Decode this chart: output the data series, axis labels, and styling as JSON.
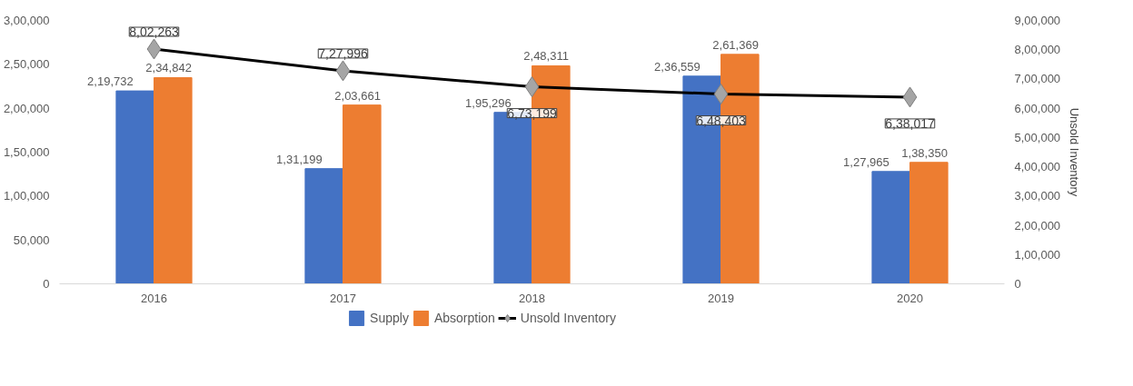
{
  "chart_data": {
    "type": "bar",
    "categories": [
      "2016",
      "2017",
      "2018",
      "2019",
      "2020"
    ],
    "y2label": "Unsold Inventory",
    "series": [
      {
        "name": "Supply",
        "color": "#4472c4",
        "values": [
          219732,
          131199,
          195296,
          236559,
          127965
        ],
        "value_labels": [
          "2,19,732",
          "1,31,199",
          "1,95,296",
          "2,36,559",
          "1,27,965"
        ]
      },
      {
        "name": "Absorption",
        "color": "#ed7d31",
        "values": [
          234842,
          203661,
          248311,
          261369,
          138350
        ],
        "value_labels": [
          "2,34,842",
          "2,03,661",
          "2,48,311",
          "2,61,369",
          "1,38,350"
        ]
      },
      {
        "name": "Unsold Inventory",
        "type": "line",
        "axis": "y2",
        "color": "#000000",
        "marker": "diamond",
        "values": [
          802263,
          727996,
          673199,
          648403,
          638017
        ],
        "value_labels": [
          "8,02,263",
          "7,27,996",
          "6,73,199",
          "6,48,403",
          "6,38,017"
        ]
      }
    ],
    "ylim": [
      0,
      300000
    ],
    "yticks": [
      {
        "value": 0,
        "label": "0"
      },
      {
        "value": 50000,
        "label": "50,000"
      },
      {
        "value": 100000,
        "label": "1,00,000"
      },
      {
        "value": 150000,
        "label": "1,50,000"
      },
      {
        "value": 200000,
        "label": "2,00,000"
      },
      {
        "value": 250000,
        "label": "2,50,000"
      },
      {
        "value": 300000,
        "label": "3,00,000"
      }
    ],
    "y2lim": [
      0,
      900000
    ],
    "y2ticks": [
      {
        "value": 0,
        "label": "0"
      },
      {
        "value": 100000,
        "label": "1,00,000"
      },
      {
        "value": 200000,
        "label": "2,00,000"
      },
      {
        "value": 300000,
        "label": "3,00,000"
      },
      {
        "value": 400000,
        "label": "4,00,000"
      },
      {
        "value": 500000,
        "label": "5,00,000"
      },
      {
        "value": 600000,
        "label": "6,00,000"
      },
      {
        "value": 700000,
        "label": "7,00,000"
      },
      {
        "value": 800000,
        "label": "8,00,000"
      },
      {
        "value": 900000,
        "label": "9,00,000"
      }
    ],
    "grid": false,
    "legend": "bottom"
  }
}
